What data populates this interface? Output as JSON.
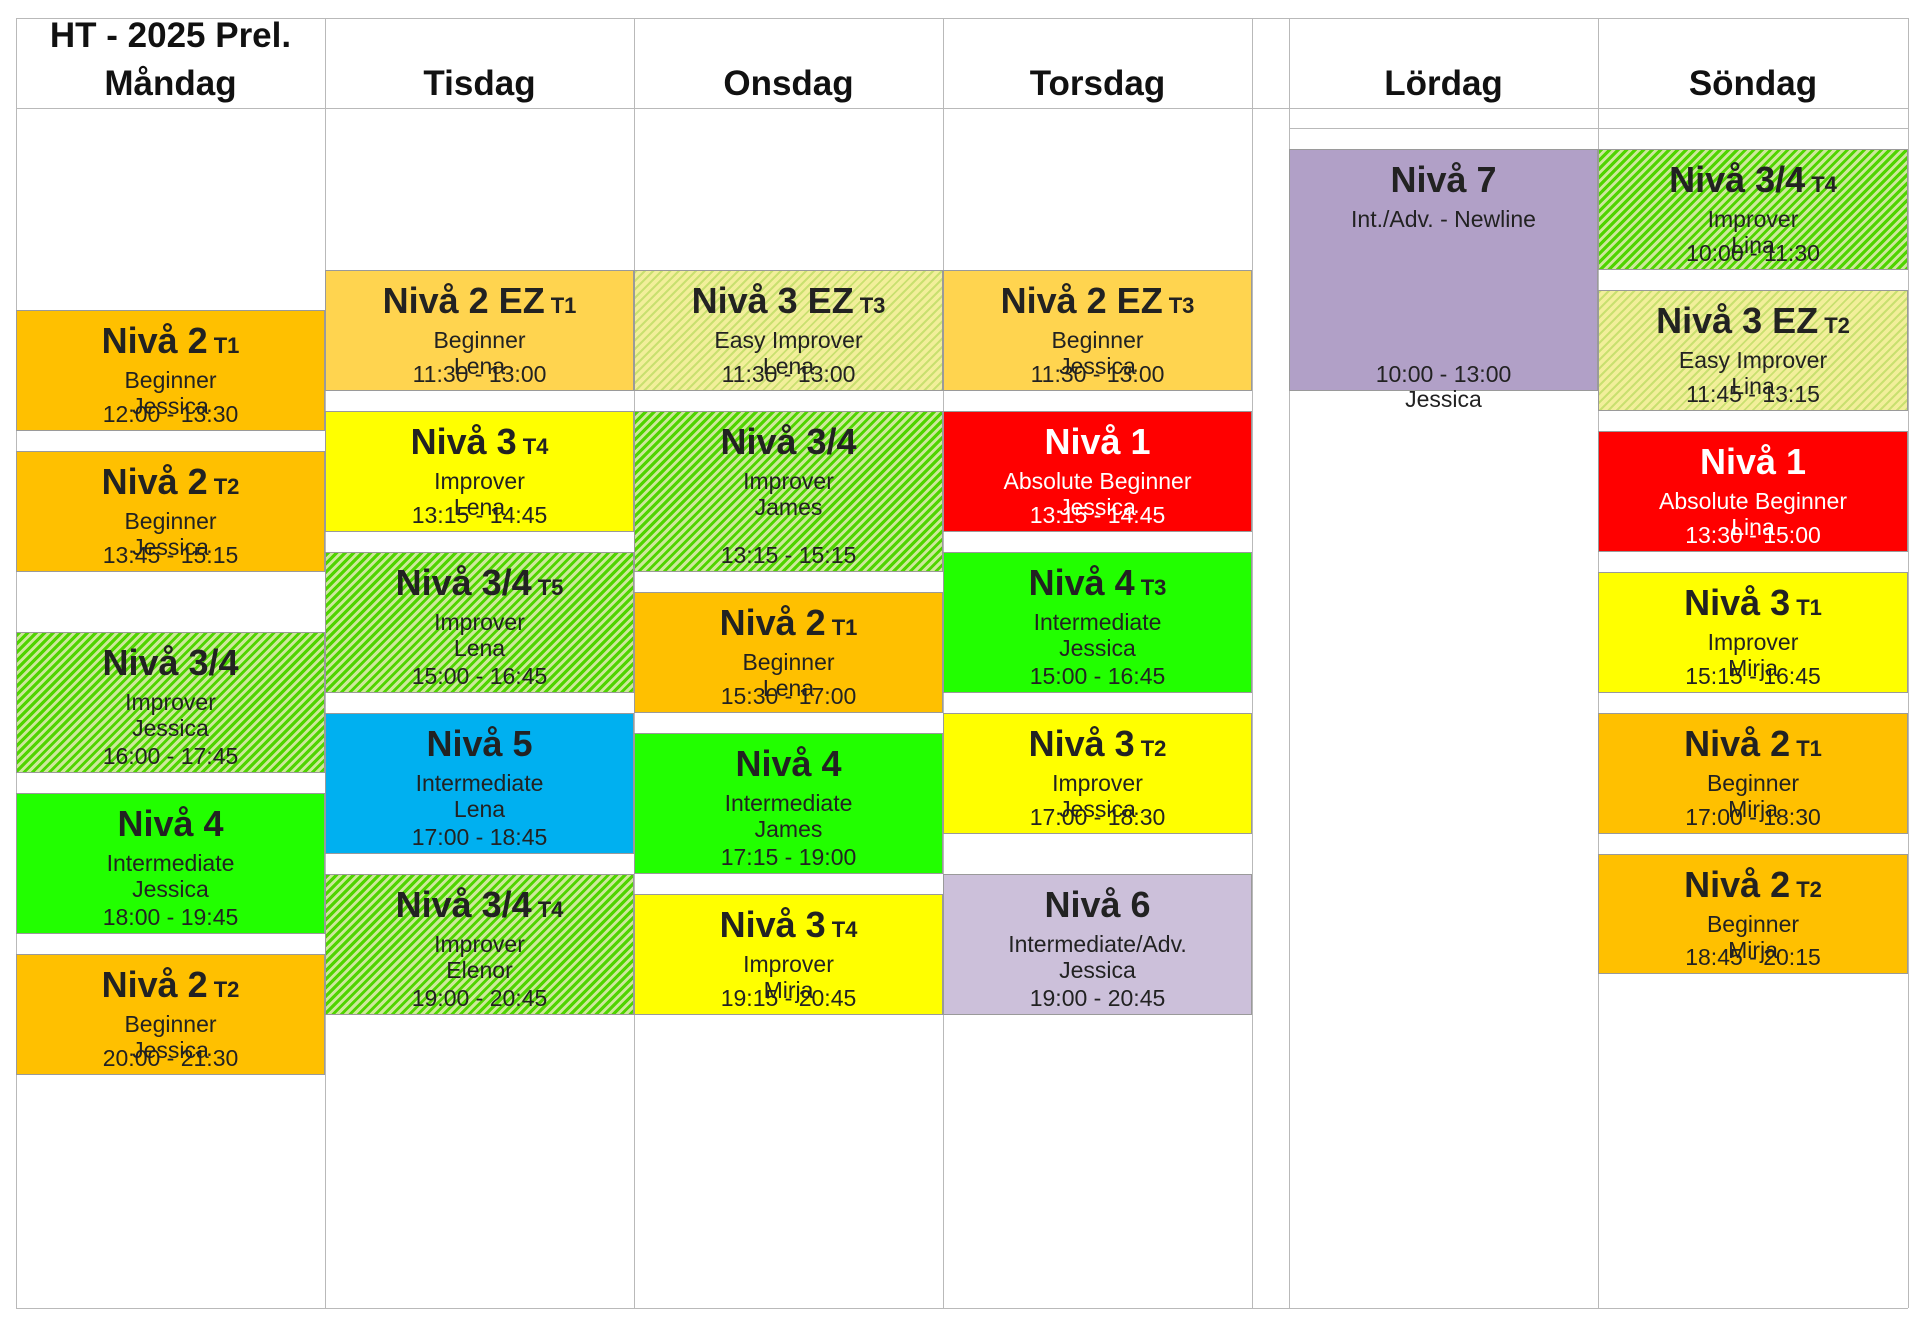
{
  "title_lines": [
    "HT - 2025 Prel.",
    "Måndag"
  ],
  "days": [
    "Tisdag",
    "Onsdag",
    "Torsdag",
    "Lördag",
    "Söndag"
  ],
  "colors": {
    "orange": "#ffc000",
    "light_orange": "#ffd44f",
    "yellow": "#ffff00",
    "green": "#22ff00",
    "green_hatch_base": "#cde99a",
    "green_hatch_stripe": "#4fd400",
    "pale_hatch_base": "#f2ef9a",
    "pale_hatch_stripe": "#c9e070",
    "red": "#ff0000",
    "blue": "#00b0f0",
    "lavender": "#ccc0da",
    "purple": "#b1a0c7",
    "grid": "#b9b9b9"
  },
  "blocks": [
    {
      "day": "mon",
      "lvl": "Nivå 2",
      "tag": "T1",
      "sub": "Beginner",
      "who": "Jessica",
      "time": "12:00 - 13:30",
      "color": "orange"
    },
    {
      "day": "mon",
      "lvl": "Nivå 2",
      "tag": "T2",
      "sub": "Beginner",
      "who": "Jessica",
      "time": "13:45 - 15:15",
      "color": "orange"
    },
    {
      "day": "mon",
      "lvl": "Nivå 3/4",
      "tag": "",
      "sub": "Improver",
      "who": "Jessica",
      "time": "16:00 - 17:45",
      "color": "green_hatch"
    },
    {
      "day": "mon",
      "lvl": "Nivå 4",
      "tag": "",
      "sub": "Intermediate",
      "who": "Jessica",
      "time": "18:00 - 19:45",
      "color": "green"
    },
    {
      "day": "mon",
      "lvl": "Nivå 2",
      "tag": "T2",
      "sub": "Beginner",
      "who": "Jessica",
      "time": "20:00 - 21:30",
      "color": "orange"
    },
    {
      "day": "tue",
      "lvl": "Nivå 2 EZ",
      "tag": "T1",
      "sub": "Beginner",
      "who": "Lena",
      "time": "11:30 - 13:00",
      "color": "light_orange"
    },
    {
      "day": "tue",
      "lvl": "Nivå 3",
      "tag": "T4",
      "sub": "Improver",
      "who": "Lena",
      "time": "13:15 - 14:45",
      "color": "yellow"
    },
    {
      "day": "tue",
      "lvl": "Nivå 3/4",
      "tag": "T5",
      "sub": "Improver",
      "who": "Lena",
      "time": "15:00 - 16:45",
      "color": "green_hatch"
    },
    {
      "day": "tue",
      "lvl": "Nivå 5",
      "tag": "",
      "sub": "Intermediate",
      "who": "Lena",
      "time": "17:00 - 18:45",
      "color": "blue"
    },
    {
      "day": "tue",
      "lvl": "Nivå 3/4",
      "tag": "T4",
      "sub": "Improver",
      "who": "Elenor",
      "time": "19:00 - 20:45",
      "color": "green_hatch"
    },
    {
      "day": "wed",
      "lvl": "Nivå 3 EZ",
      "tag": "T3",
      "sub": "Easy Improver",
      "who": "Lena",
      "time": "11:30 - 13:00",
      "color": "pale_hatch"
    },
    {
      "day": "wed",
      "lvl": "Nivå 3/4",
      "tag": "",
      "sub": "Improver",
      "who": "James",
      "time": "13:15 - 15:15",
      "color": "green_hatch"
    },
    {
      "day": "wed",
      "lvl": "Nivå 2",
      "tag": "T1",
      "sub": "Beginner",
      "who": "Lena",
      "time": "15:30 - 17:00",
      "color": "orange"
    },
    {
      "day": "wed",
      "lvl": "Nivå 4",
      "tag": "",
      "sub": "Intermediate",
      "who": "James",
      "time": "17:15 - 19:00",
      "color": "green"
    },
    {
      "day": "wed",
      "lvl": "Nivå 3",
      "tag": "T4",
      "sub": "Improver",
      "who": "Mirja",
      "time": "19:15 - 20:45",
      "color": "yellow"
    },
    {
      "day": "thu",
      "lvl": "Nivå 2 EZ",
      "tag": "T3",
      "sub": "Beginner",
      "who": "Jessica",
      "time": "11:30 - 13:00",
      "color": "light_orange"
    },
    {
      "day": "thu",
      "lvl": "Nivå 1",
      "tag": "",
      "sub": "Absolute Beginner",
      "who": "Jessica",
      "time": "13:15 - 14:45",
      "color": "red"
    },
    {
      "day": "thu",
      "lvl": "Nivå 4",
      "tag": "T3",
      "sub": "Intermediate",
      "who": "Jessica",
      "time": "15:00 - 16:45",
      "color": "green"
    },
    {
      "day": "thu",
      "lvl": "Nivå 3",
      "tag": "T2",
      "sub": "Improver",
      "who": "Jessica",
      "time": "17:00 - 18:30",
      "color": "yellow"
    },
    {
      "day": "thu",
      "lvl": "Nivå 6",
      "tag": "",
      "sub": "Intermediate/Adv.",
      "who": "Jessica",
      "time": "19:00 - 20:45",
      "color": "lavender"
    },
    {
      "day": "sat",
      "lvl": "Nivå 7",
      "tag": "",
      "sub": "Int./Adv. - Newline",
      "who": "Jessica",
      "time": "10:00 - 13:00",
      "color": "purple"
    },
    {
      "day": "sun",
      "lvl": "Nivå 3/4",
      "tag": "T4",
      "sub": "Improver",
      "who": "Lina",
      "time": "10:00 - 11:30",
      "color": "green_hatch"
    },
    {
      "day": "sun",
      "lvl": "Nivå 3 EZ",
      "tag": "T2",
      "sub": "Easy Improver",
      "who": "Lina",
      "time": "11:45 - 13:15",
      "color": "pale_hatch"
    },
    {
      "day": "sun",
      "lvl": "Nivå 1",
      "tag": "",
      "sub": "Absolute Beginner",
      "who": "Lina",
      "time": "13:30 - 15:00",
      "color": "red"
    },
    {
      "day": "sun",
      "lvl": "Nivå 3",
      "tag": "T1",
      "sub": "Improver",
      "who": "Mirja",
      "time": "15:15 - 16:45",
      "color": "yellow"
    },
    {
      "day": "sun",
      "lvl": "Nivå 2",
      "tag": "T1",
      "sub": "Beginner",
      "who": "Mirja",
      "time": "17:00 - 18:30",
      "color": "orange"
    },
    {
      "day": "sun",
      "lvl": "Nivå 2",
      "tag": "T2",
      "sub": "Beginner",
      "who": "Mirja",
      "time": "18:45 - 20:15",
      "color": "orange"
    }
  ]
}
